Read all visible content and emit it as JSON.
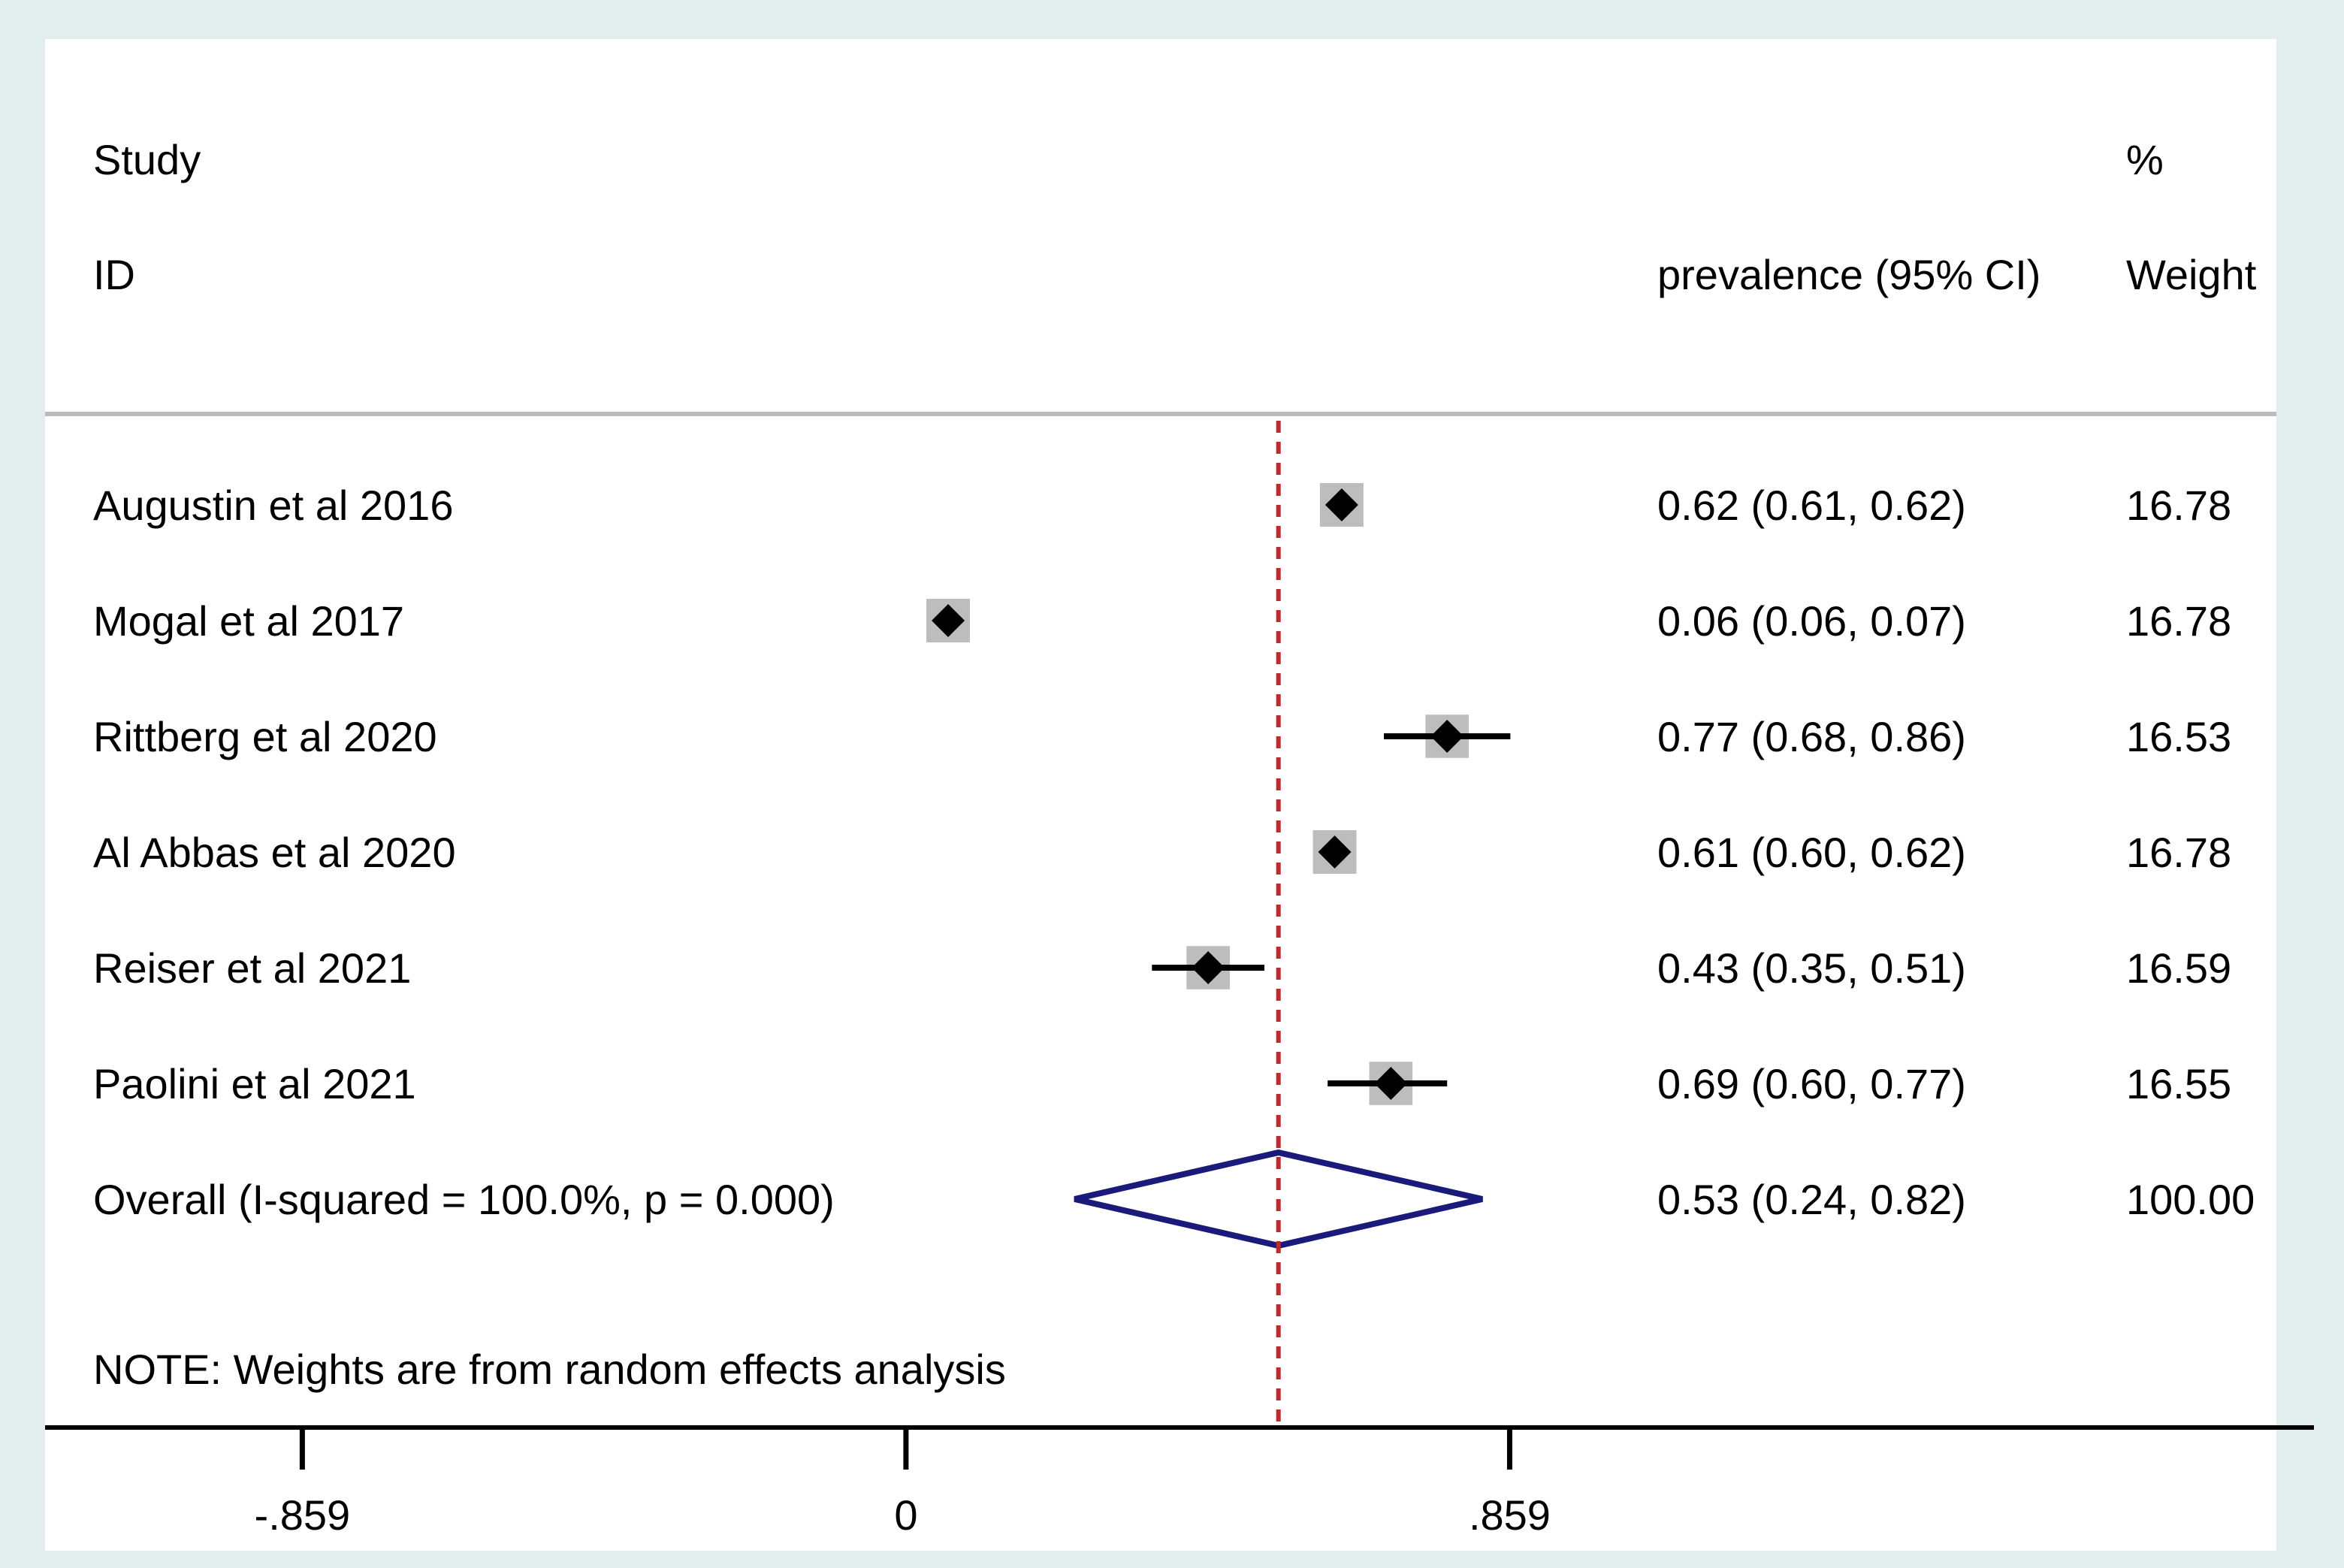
{
  "colors": {
    "outer_background": "#e2eeee",
    "plot_background": "#ffffff",
    "box_fill": "#bdbdbd",
    "marker": "#000000",
    "null_line": "#c0282d",
    "overall_diamond": "#1a1a7a",
    "header_rule": "#bbbbbb"
  },
  "chart_data": {
    "type": "forest",
    "headers": {
      "study_line1": "Study",
      "study_line2": "ID",
      "estimate": "prevalence (95% CI)",
      "weight_line1": "%",
      "weight_line2": "Weight"
    },
    "studies": [
      {
        "label": "Augustin et al 2016",
        "estimate": 0.62,
        "lower": 0.61,
        "upper": 0.62,
        "ci_text": "0.62 (0.61, 0.62)",
        "weight": 16.78,
        "weight_text": "16.78"
      },
      {
        "label": "Mogal et al 2017",
        "estimate": 0.06,
        "lower": 0.06,
        "upper": 0.07,
        "ci_text": "0.06 (0.06, 0.07)",
        "weight": 16.78,
        "weight_text": "16.78"
      },
      {
        "label": "Rittberg et al 2020",
        "estimate": 0.77,
        "lower": 0.68,
        "upper": 0.86,
        "ci_text": "0.77 (0.68, 0.86)",
        "weight": 16.53,
        "weight_text": "16.53"
      },
      {
        "label": "Al Abbas et al 2020",
        "estimate": 0.61,
        "lower": 0.6,
        "upper": 0.62,
        "ci_text": "0.61 (0.60, 0.62)",
        "weight": 16.78,
        "weight_text": "16.78"
      },
      {
        "label": "Reiser et al 2021",
        "estimate": 0.43,
        "lower": 0.35,
        "upper": 0.51,
        "ci_text": "0.43 (0.35, 0.51)",
        "weight": 16.59,
        "weight_text": "16.59"
      },
      {
        "label": "Paolini et al 2021",
        "estimate": 0.69,
        "lower": 0.6,
        "upper": 0.77,
        "ci_text": "0.69 (0.60, 0.77)",
        "weight": 16.55,
        "weight_text": "16.55"
      }
    ],
    "overall": {
      "label": "Overall  (I-squared = 100.0%, p = 0.000)",
      "estimate": 0.53,
      "lower": 0.24,
      "upper": 0.82,
      "ci_text": "0.53 (0.24, 0.82)",
      "weight_text": "100.00"
    },
    "null_line_value": 0.53,
    "note": "NOTE: Weights are from random effects analysis",
    "x_axis": {
      "range": [
        -1.225,
        1.95
      ],
      "ticks": [
        -0.859,
        0,
        0.859
      ],
      "tick_labels": [
        "-.859",
        "0",
        ".859"
      ]
    }
  }
}
